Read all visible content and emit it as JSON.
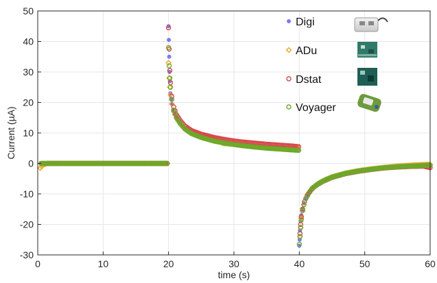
{
  "chart_data": {
    "type": "scatter",
    "xlabel": "time (s)",
    "ylabel": "Current (µA)",
    "xlim": [
      0,
      60
    ],
    "ylim": [
      -30,
      50
    ],
    "xticks": [
      0,
      10,
      20,
      30,
      40,
      50,
      60
    ],
    "yticks": [
      -30,
      -20,
      -10,
      0,
      10,
      20,
      30,
      40,
      50
    ],
    "grid": true,
    "legend_position": "top-right",
    "series": [
      {
        "name": "Digi",
        "marker": "filled-circle",
        "color": "#6b6ff0",
        "segments": [
          {
            "x": [
              0.5,
              1,
              2,
              4,
              6,
              8,
              10,
              12,
              14,
              16,
              18,
              19.8
            ],
            "y": [
              0,
              0,
              0,
              0,
              0,
              0,
              0,
              0,
              0,
              0,
              0,
              0
            ]
          },
          {
            "x": [
              20.0,
              20.05,
              20.1,
              20.15,
              20.2,
              20.3,
              20.4,
              20.5,
              20.7,
              21,
              21.5,
              22,
              23,
              24,
              25,
              27,
              29,
              31,
              33,
              35,
              37,
              39,
              39.9
            ],
            "y": [
              45,
              40.5,
              35,
              30,
              27,
              23,
              21,
              19.5,
              17.5,
              16,
              14,
              12.5,
              10.5,
              9.3,
              8.5,
              7.5,
              6.7,
              6.2,
              5.8,
              5.4,
              5.1,
              4.8,
              4.6
            ]
          },
          {
            "x": [
              40.0,
              40.05,
              40.1,
              40.2,
              40.3,
              40.5,
              40.7,
              41,
              41.5,
              42,
              43,
              44,
              45,
              46,
              48,
              50,
              52,
              54,
              56,
              58,
              60
            ],
            "y": [
              -27,
              -25,
              -22,
              -19,
              -17,
              -15,
              -13,
              -11.5,
              -9.5,
              -8,
              -6.5,
              -5.4,
              -4.5,
              -3.8,
              -2.9,
              -2.2,
              -1.7,
              -1.3,
              -1.0,
              -0.8,
              -0.6
            ]
          }
        ]
      },
      {
        "name": "ADu",
        "marker": "open-diamond",
        "color": "#e8a21a",
        "segments": [
          {
            "x": [
              0.4,
              0.8,
              1.5,
              3,
              5,
              7,
              9,
              11,
              13,
              15,
              17,
              19,
              19.8
            ],
            "y": [
              -1.5,
              -0.5,
              0,
              0,
              0,
              0,
              0,
              0,
              0,
              0,
              0,
              0,
              0
            ]
          },
          {
            "x": [
              20.0,
              20.1,
              20.2,
              20.3,
              20.5,
              20.8,
              21.2,
              21.8,
              22.5,
              23.5,
              25,
              27,
              28.5,
              30,
              32,
              34,
              36,
              38,
              39.8
            ],
            "y": [
              33,
              28,
              25,
              22.5,
              19.5,
              17,
              15,
              13,
              11.5,
              10,
              8.8,
              7.8,
              6.5,
              6.5,
              6,
              5.6,
              5.3,
              5.0,
              4.8
            ]
          },
          {
            "x": [
              40.1,
              40.2,
              40.3,
              40.5,
              40.7,
              41,
              41.5,
              42,
              43,
              44,
              45,
              47,
              49,
              51,
              53,
              55,
              57,
              59,
              60
            ],
            "y": [
              -24,
              -21,
              -18,
              -15.5,
              -13.5,
              -11.5,
              -9.5,
              -8,
              -6.4,
              -5.3,
              -4.4,
              -3.2,
              -2.4,
              -1.8,
              -1.3,
              -0.9,
              -0.6,
              -0.4,
              -0.3
            ]
          }
        ]
      },
      {
        "name": "Dstat",
        "marker": "open-circle",
        "color": "#d8474a",
        "segments": [
          {
            "x": [
              0.6,
              1.2,
              2.5,
              4.5,
              6.5,
              8.5,
              10.5,
              12.5,
              14.5,
              16.5,
              18.5,
              19.8
            ],
            "y": [
              0,
              0,
              0,
              0,
              0,
              0,
              0,
              0,
              0,
              0,
              0,
              0
            ]
          },
          {
            "x": [
              20.0,
              20.1,
              20.2,
              20.3,
              20.5,
              20.8,
              21.2,
              21.8,
              22.5,
              23.5,
              25,
              27,
              29,
              31,
              33,
              35,
              37,
              39,
              39.9
            ],
            "y": [
              44.5,
              37.5,
              30.5,
              26.5,
              22,
              18.5,
              16,
              14,
              12.3,
              10.8,
              9.6,
              8.5,
              7.7,
              7.1,
              6.7,
              6.3,
              6.0,
              5.7,
              5.5
            ]
          },
          {
            "x": [
              40.1,
              40.2,
              40.3,
              40.5,
              40.8,
              41.2,
              41.8,
              42.5,
              43.5,
              45,
              47,
              49,
              51,
              53,
              55,
              57,
              59,
              60
            ],
            "y": [
              -23,
              -20,
              -17.5,
              -15,
              -12.5,
              -10.5,
              -8.7,
              -7.3,
              -6,
              -4.6,
              -3.4,
              -2.6,
              -2,
              -1.5,
              -1.2,
              -1.0,
              -0.9,
              -1.4
            ]
          }
        ]
      },
      {
        "name": "Voyager",
        "marker": "open-circle",
        "color": "#6aaa2a",
        "segments": [
          {
            "x": [
              0.5,
              1,
              2,
              3.5,
              5.5,
              7.5,
              9.5,
              11.5,
              13.5,
              15.5,
              17.5,
              19.5,
              19.8
            ],
            "y": [
              0,
              0,
              0,
              0,
              0,
              0,
              0,
              0,
              0,
              0,
              0,
              0,
              0
            ]
          },
          {
            "x": [
              20.0,
              20.1,
              20.2,
              20.3,
              20.5,
              20.8,
              21.2,
              21.8,
              22.5,
              23.5,
              25,
              27,
              29,
              31,
              33,
              35,
              37,
              39,
              39.9
            ],
            "y": [
              38,
              32,
              28,
              25,
              21,
              17.5,
              15,
              13,
              11.3,
              9.8,
              8.5,
              7.3,
              6.5,
              5.9,
              5.4,
              5.0,
              4.7,
              4.4,
              4.3
            ]
          },
          {
            "x": [
              40.0,
              40.1,
              40.2,
              40.3,
              40.5,
              40.7,
              41,
              41.5,
              42,
              43,
              44,
              45,
              47,
              49,
              51,
              53,
              55,
              57,
              59,
              60
            ],
            "y": [
              -26.5,
              -24,
              -21,
              -18.5,
              -15.5,
              -13.5,
              -11.5,
              -9.6,
              -8.1,
              -6.5,
              -5.4,
              -4.5,
              -3.3,
              -2.5,
              -1.9,
              -1.4,
              -1.1,
              -0.9,
              -0.7,
              -0.6
            ]
          }
        ]
      }
    ]
  }
}
